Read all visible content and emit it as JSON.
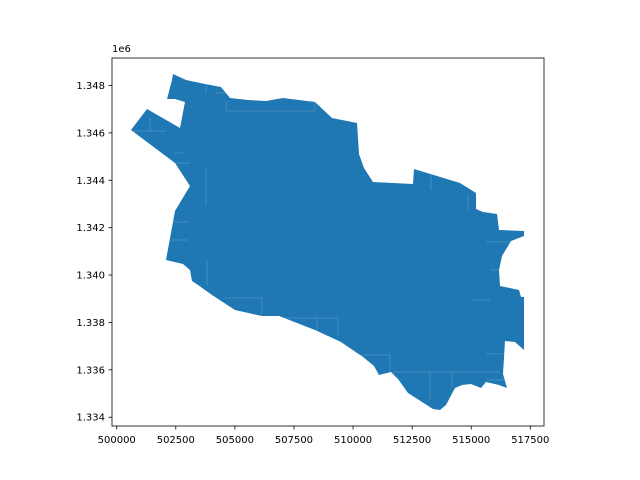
{
  "map": {
    "fill_color": "#1f77b4",
    "edge_color": "#ffffff",
    "y_offset_label": "1e6",
    "x_ticks": [
      {
        "value": 500000,
        "label": "500000"
      },
      {
        "value": 502500,
        "label": "502500"
      },
      {
        "value": 505000,
        "label": "505000"
      },
      {
        "value": 507500,
        "label": "507500"
      },
      {
        "value": 510000,
        "label": "510000"
      },
      {
        "value": 512500,
        "label": "512500"
      },
      {
        "value": 515000,
        "label": "515000"
      },
      {
        "value": 517500,
        "label": "517500"
      }
    ],
    "y_ticks": [
      {
        "value": 1.334,
        "label": "1.334"
      },
      {
        "value": 1.336,
        "label": "1.336"
      },
      {
        "value": 1.338,
        "label": "1.338"
      },
      {
        "value": 1.34,
        "label": "1.340"
      },
      {
        "value": 1.342,
        "label": "1.342"
      },
      {
        "value": 1.344,
        "label": "1.344"
      },
      {
        "value": 1.346,
        "label": "1.346"
      },
      {
        "value": 1.348,
        "label": "1.348"
      }
    ],
    "x_range": [
      499800,
      518080
    ],
    "y_range": [
      1.33363,
      1.34916
    ]
  }
}
